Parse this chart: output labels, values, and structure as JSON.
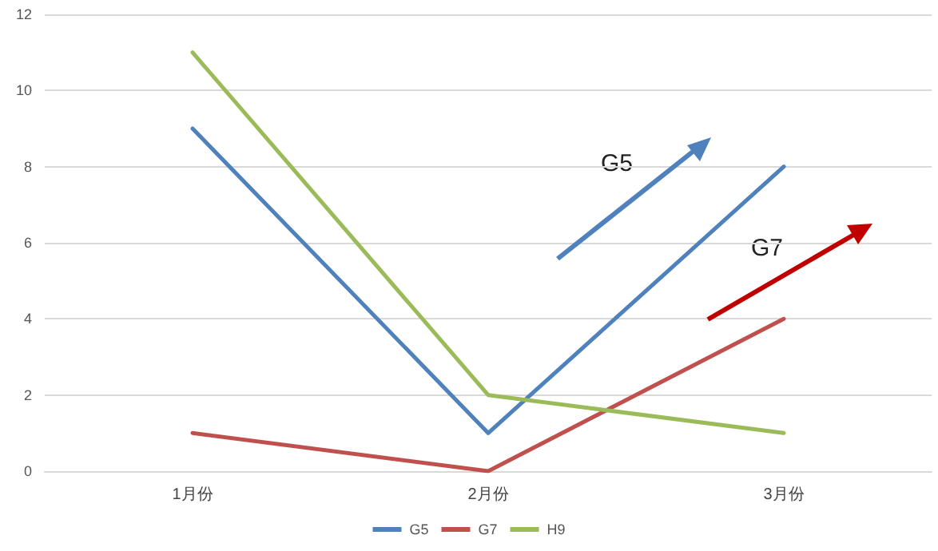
{
  "chart_data": {
    "type": "line",
    "categories": [
      "1月份",
      "2月份",
      "3月份"
    ],
    "series": [
      {
        "name": "G5",
        "color": "#4f81bd",
        "values": [
          9,
          1,
          8
        ]
      },
      {
        "name": "G7",
        "color": "#c0504d",
        "values": [
          1,
          0,
          4
        ]
      },
      {
        "name": "H9",
        "color": "#9bbb59",
        "values": [
          11,
          2,
          1
        ]
      }
    ],
    "ylim": [
      0,
      12
    ],
    "yticks": [
      0,
      2,
      4,
      6,
      8,
      10,
      12
    ],
    "grid": "y",
    "legend": "bottom",
    "marker": "none",
    "line_style": "solid",
    "annotations": [
      "G5",
      "G7"
    ]
  }
}
